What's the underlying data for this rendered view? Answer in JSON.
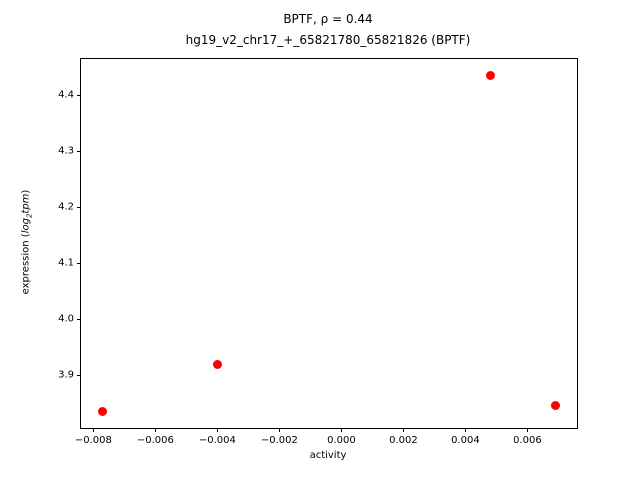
{
  "chart_data": {
    "type": "scatter",
    "title_line1": "BPTF, ρ = 0.44",
    "title_line2": "hg19_v2_chr17_+_65821780_65821826 (BPTF)",
    "xlabel": "activity",
    "ylabel_prefix": "expression (",
    "ylabel_italic1": "log",
    "ylabel_sub": "2",
    "ylabel_italic2": "tpm",
    "ylabel_suffix": ")",
    "marker_color": "#ff0000",
    "xlim": [
      -0.0084,
      0.0076
    ],
    "ylim": [
      3.805,
      4.465
    ],
    "xticks": [
      {
        "v": -0.008,
        "label": "−0.008"
      },
      {
        "v": -0.006,
        "label": "−0.006"
      },
      {
        "v": -0.004,
        "label": "−0.004"
      },
      {
        "v": -0.002,
        "label": "−0.002"
      },
      {
        "v": 0.0,
        "label": "0.000"
      },
      {
        "v": 0.002,
        "label": "0.002"
      },
      {
        "v": 0.004,
        "label": "0.004"
      },
      {
        "v": 0.006,
        "label": "0.006"
      }
    ],
    "yticks": [
      {
        "v": 3.9,
        "label": "3.9"
      },
      {
        "v": 4.0,
        "label": "4.0"
      },
      {
        "v": 4.1,
        "label": "4.1"
      },
      {
        "v": 4.2,
        "label": "4.2"
      },
      {
        "v": 4.3,
        "label": "4.3"
      },
      {
        "v": 4.4,
        "label": "4.4"
      }
    ],
    "points": [
      {
        "x": -0.0077,
        "y": 3.835
      },
      {
        "x": -0.004,
        "y": 3.918
      },
      {
        "x": 0.0048,
        "y": 4.435
      },
      {
        "x": 0.0069,
        "y": 3.845
      }
    ],
    "grid": false,
    "legend": "none"
  }
}
